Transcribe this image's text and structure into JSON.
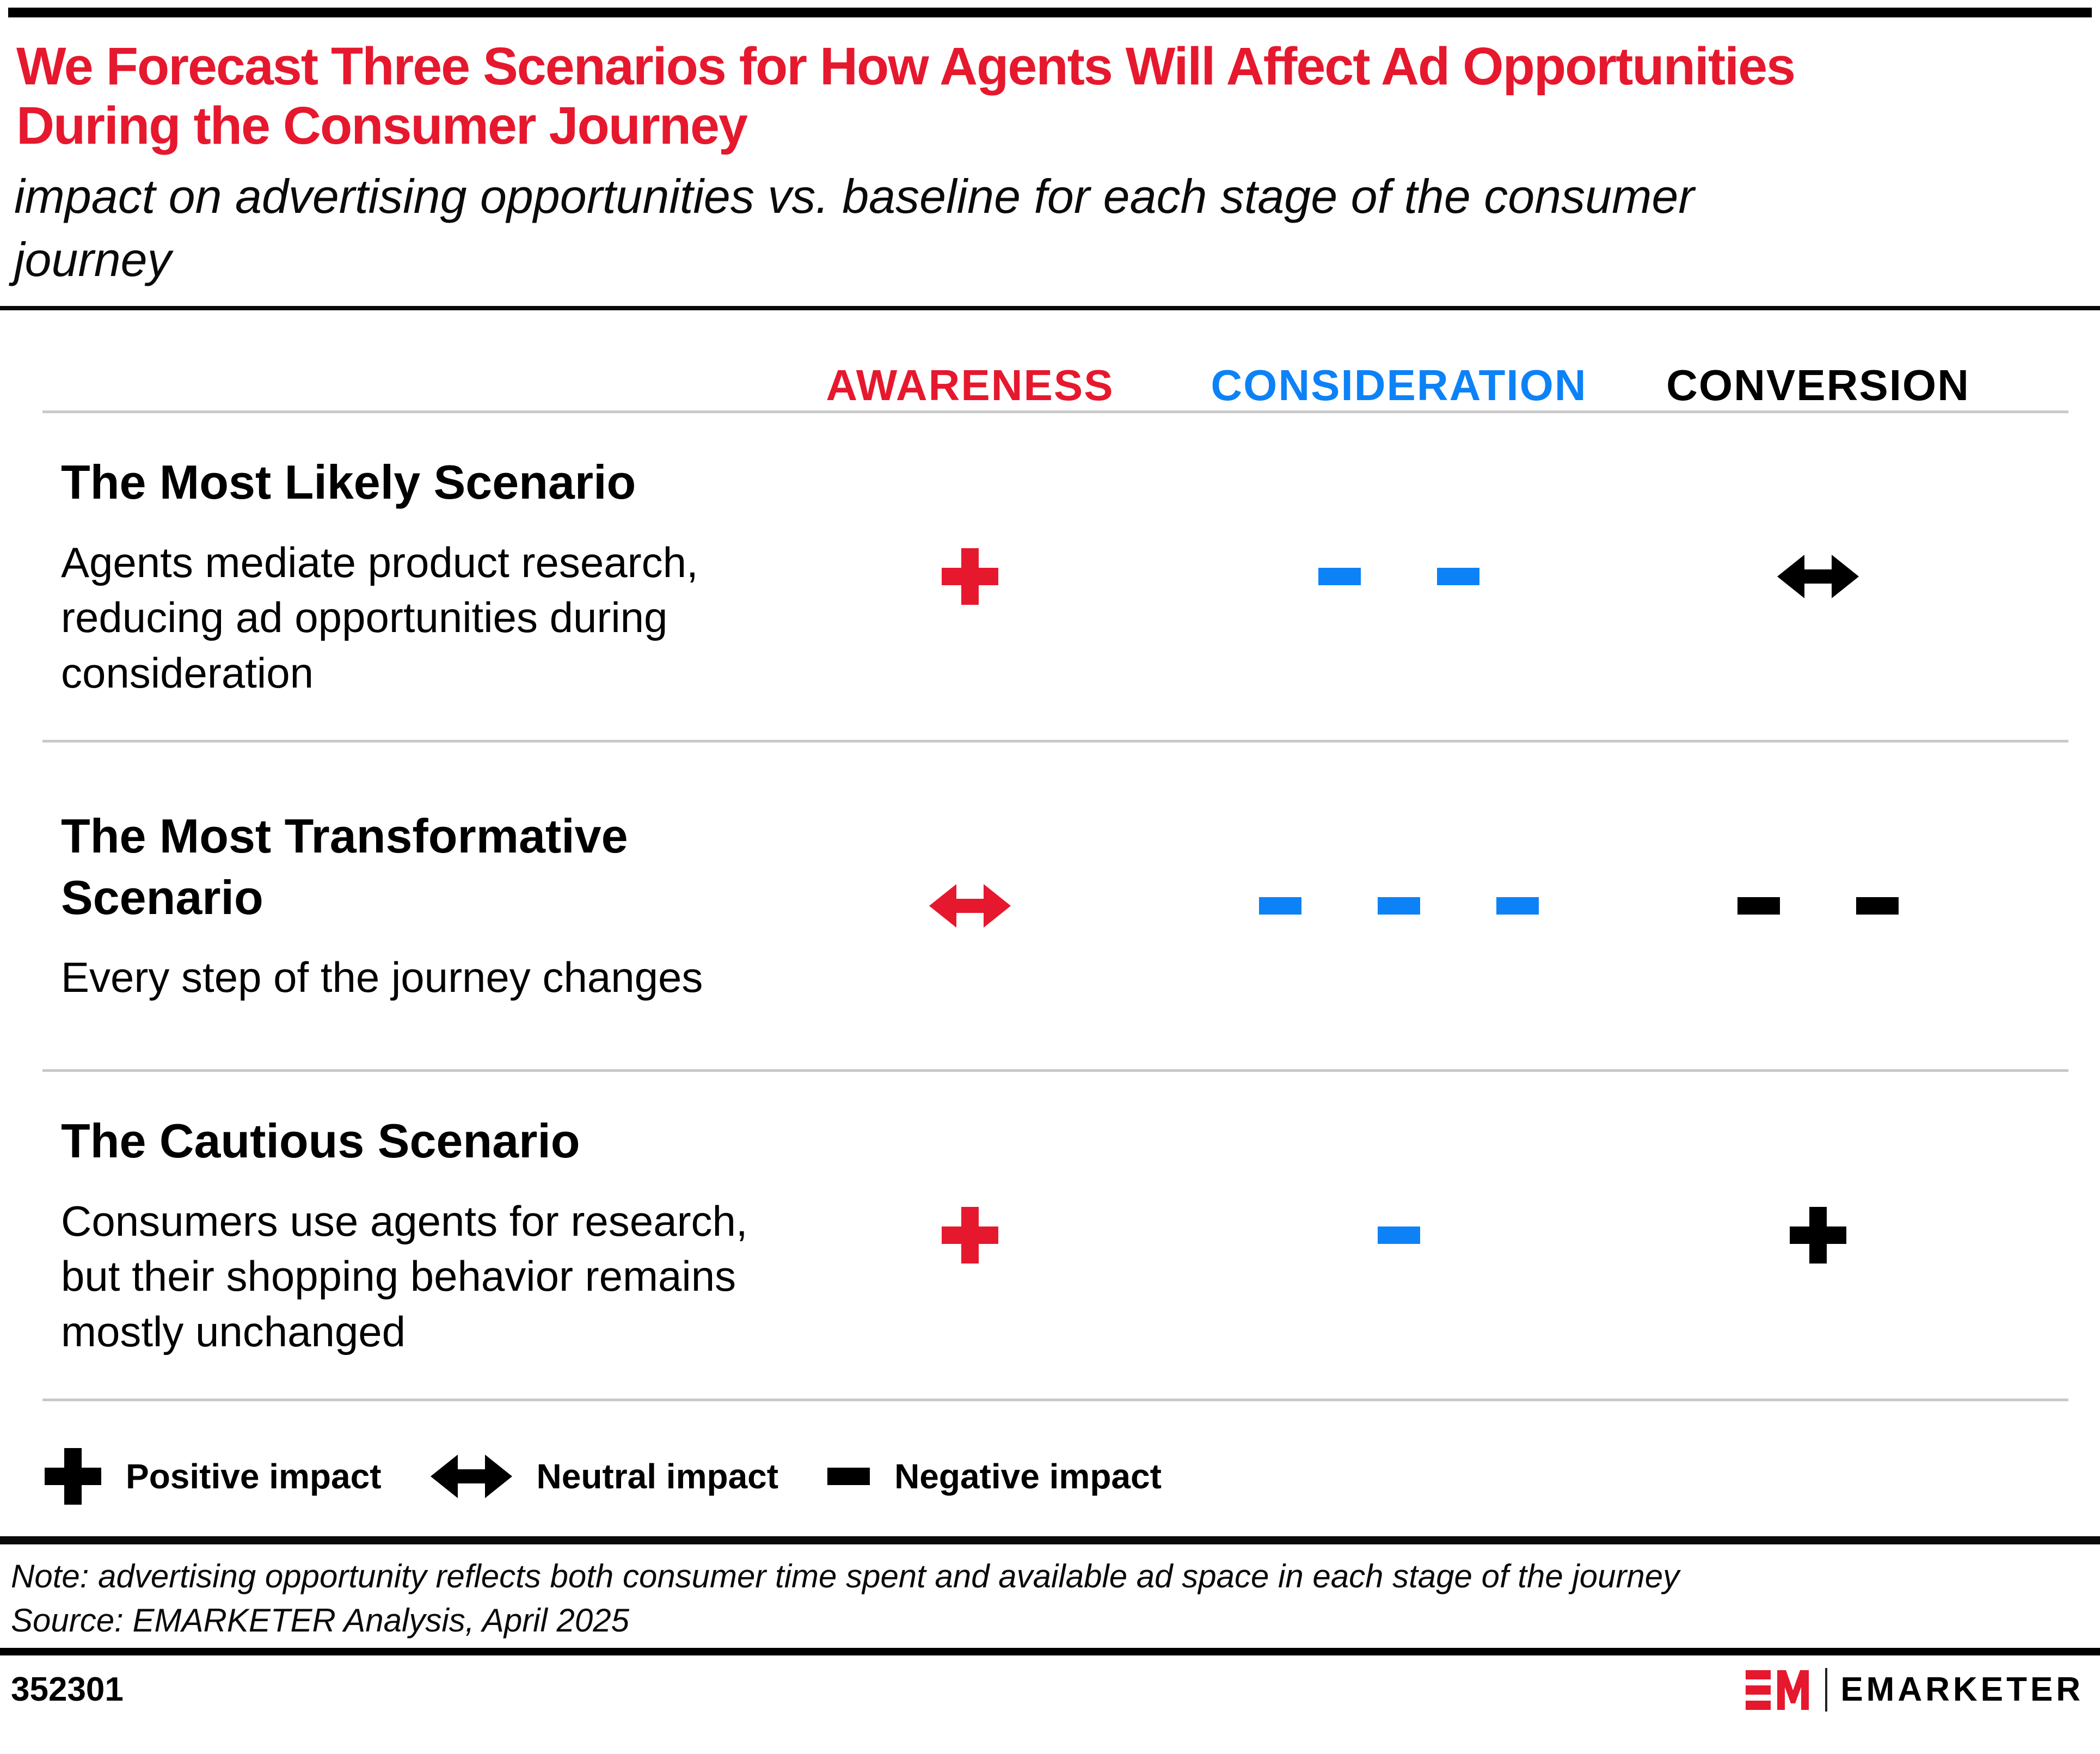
{
  "page": {
    "title": "We Forecast Three Scenarios for How Agents Will Affect Ad Opportunities\nDuring the Consumer Journey",
    "subtitle": "impact on advertising opportunities vs. baseline for each stage of the consumer\njourney",
    "note": "Note: advertising opportunity reflects both consumer time spent and available ad space in each stage of the journey",
    "source": "Source: EMARKETER Analysis, April 2025",
    "chart_id": "352301"
  },
  "colors": {
    "red": "#e6182e",
    "blue": "#0d82f7",
    "black": "#000000",
    "separator_gray": "#c9c9c9"
  },
  "columns": [
    {
      "id": "awareness",
      "label": "AWARENESS",
      "color_name": "red"
    },
    {
      "id": "consideration",
      "label": "CONSIDERATION",
      "color_name": "blue"
    },
    {
      "id": "conversion",
      "label": "CONVERSION",
      "color_name": "black"
    }
  ],
  "rows": [
    {
      "title": "The Most Likely Scenario",
      "description": "Agents mediate product research,\nreducing ad opportunities during\nconsideration",
      "impacts": {
        "awareness": {
          "symbol": "plus",
          "count": 1,
          "color_name": "red"
        },
        "consideration": {
          "symbol": "minus",
          "count": 2,
          "color_name": "blue"
        },
        "conversion": {
          "symbol": "arrow",
          "count": 1,
          "color_name": "black"
        }
      }
    },
    {
      "title": "The Most Transformative\nScenario",
      "description": "Every step of the journey changes",
      "impacts": {
        "awareness": {
          "symbol": "arrow",
          "count": 1,
          "color_name": "red"
        },
        "consideration": {
          "symbol": "minus",
          "count": 3,
          "color_name": "blue"
        },
        "conversion": {
          "symbol": "minus",
          "count": 2,
          "color_name": "black"
        }
      }
    },
    {
      "title": "The Cautious Scenario",
      "description": "Consumers use agents for research,\nbut their shopping behavior remains\nmostly unchanged",
      "impacts": {
        "awareness": {
          "symbol": "plus",
          "count": 1,
          "color_name": "red"
        },
        "consideration": {
          "symbol": "minus",
          "count": 1,
          "color_name": "blue"
        },
        "conversion": {
          "symbol": "plus",
          "count": 1,
          "color_name": "black"
        }
      }
    }
  ],
  "legend": {
    "items": [
      {
        "symbol": "plus",
        "label": "Positive impact"
      },
      {
        "symbol": "arrow",
        "label": "Neutral impact"
      },
      {
        "symbol": "minus",
        "label": "Negative impact"
      }
    ]
  },
  "brand": {
    "logo_monogram": "EM",
    "name": "EMARKETER"
  },
  "chart_data": {
    "type": "table",
    "title": "We Forecast Three Scenarios for How Agents Will Affect Ad Opportunities During the Consumer Journey",
    "subtitle": "impact on advertising opportunities vs. baseline for each stage of the consumer journey",
    "columns": [
      "Awareness",
      "Consideration",
      "Conversion"
    ],
    "rows": [
      {
        "scenario": "The Most Likely Scenario",
        "awareness": "positive (+)",
        "consideration": "negative (- -)",
        "conversion": "neutral (<->)"
      },
      {
        "scenario": "The Most Transformative Scenario",
        "awareness": "neutral (<->)",
        "consideration": "negative (- - -)",
        "conversion": "negative (- -)"
      },
      {
        "scenario": "The Cautious Scenario",
        "awareness": "positive (+)",
        "consideration": "negative (-)",
        "conversion": "positive (+)"
      }
    ],
    "legend": [
      "+ Positive impact",
      "<-> Neutral impact",
      "- Negative impact"
    ],
    "note": "Note: advertising opportunity reflects both consumer time spent and available ad space in each stage of the journey",
    "source": "Source: EMARKETER Analysis, April 2025"
  }
}
